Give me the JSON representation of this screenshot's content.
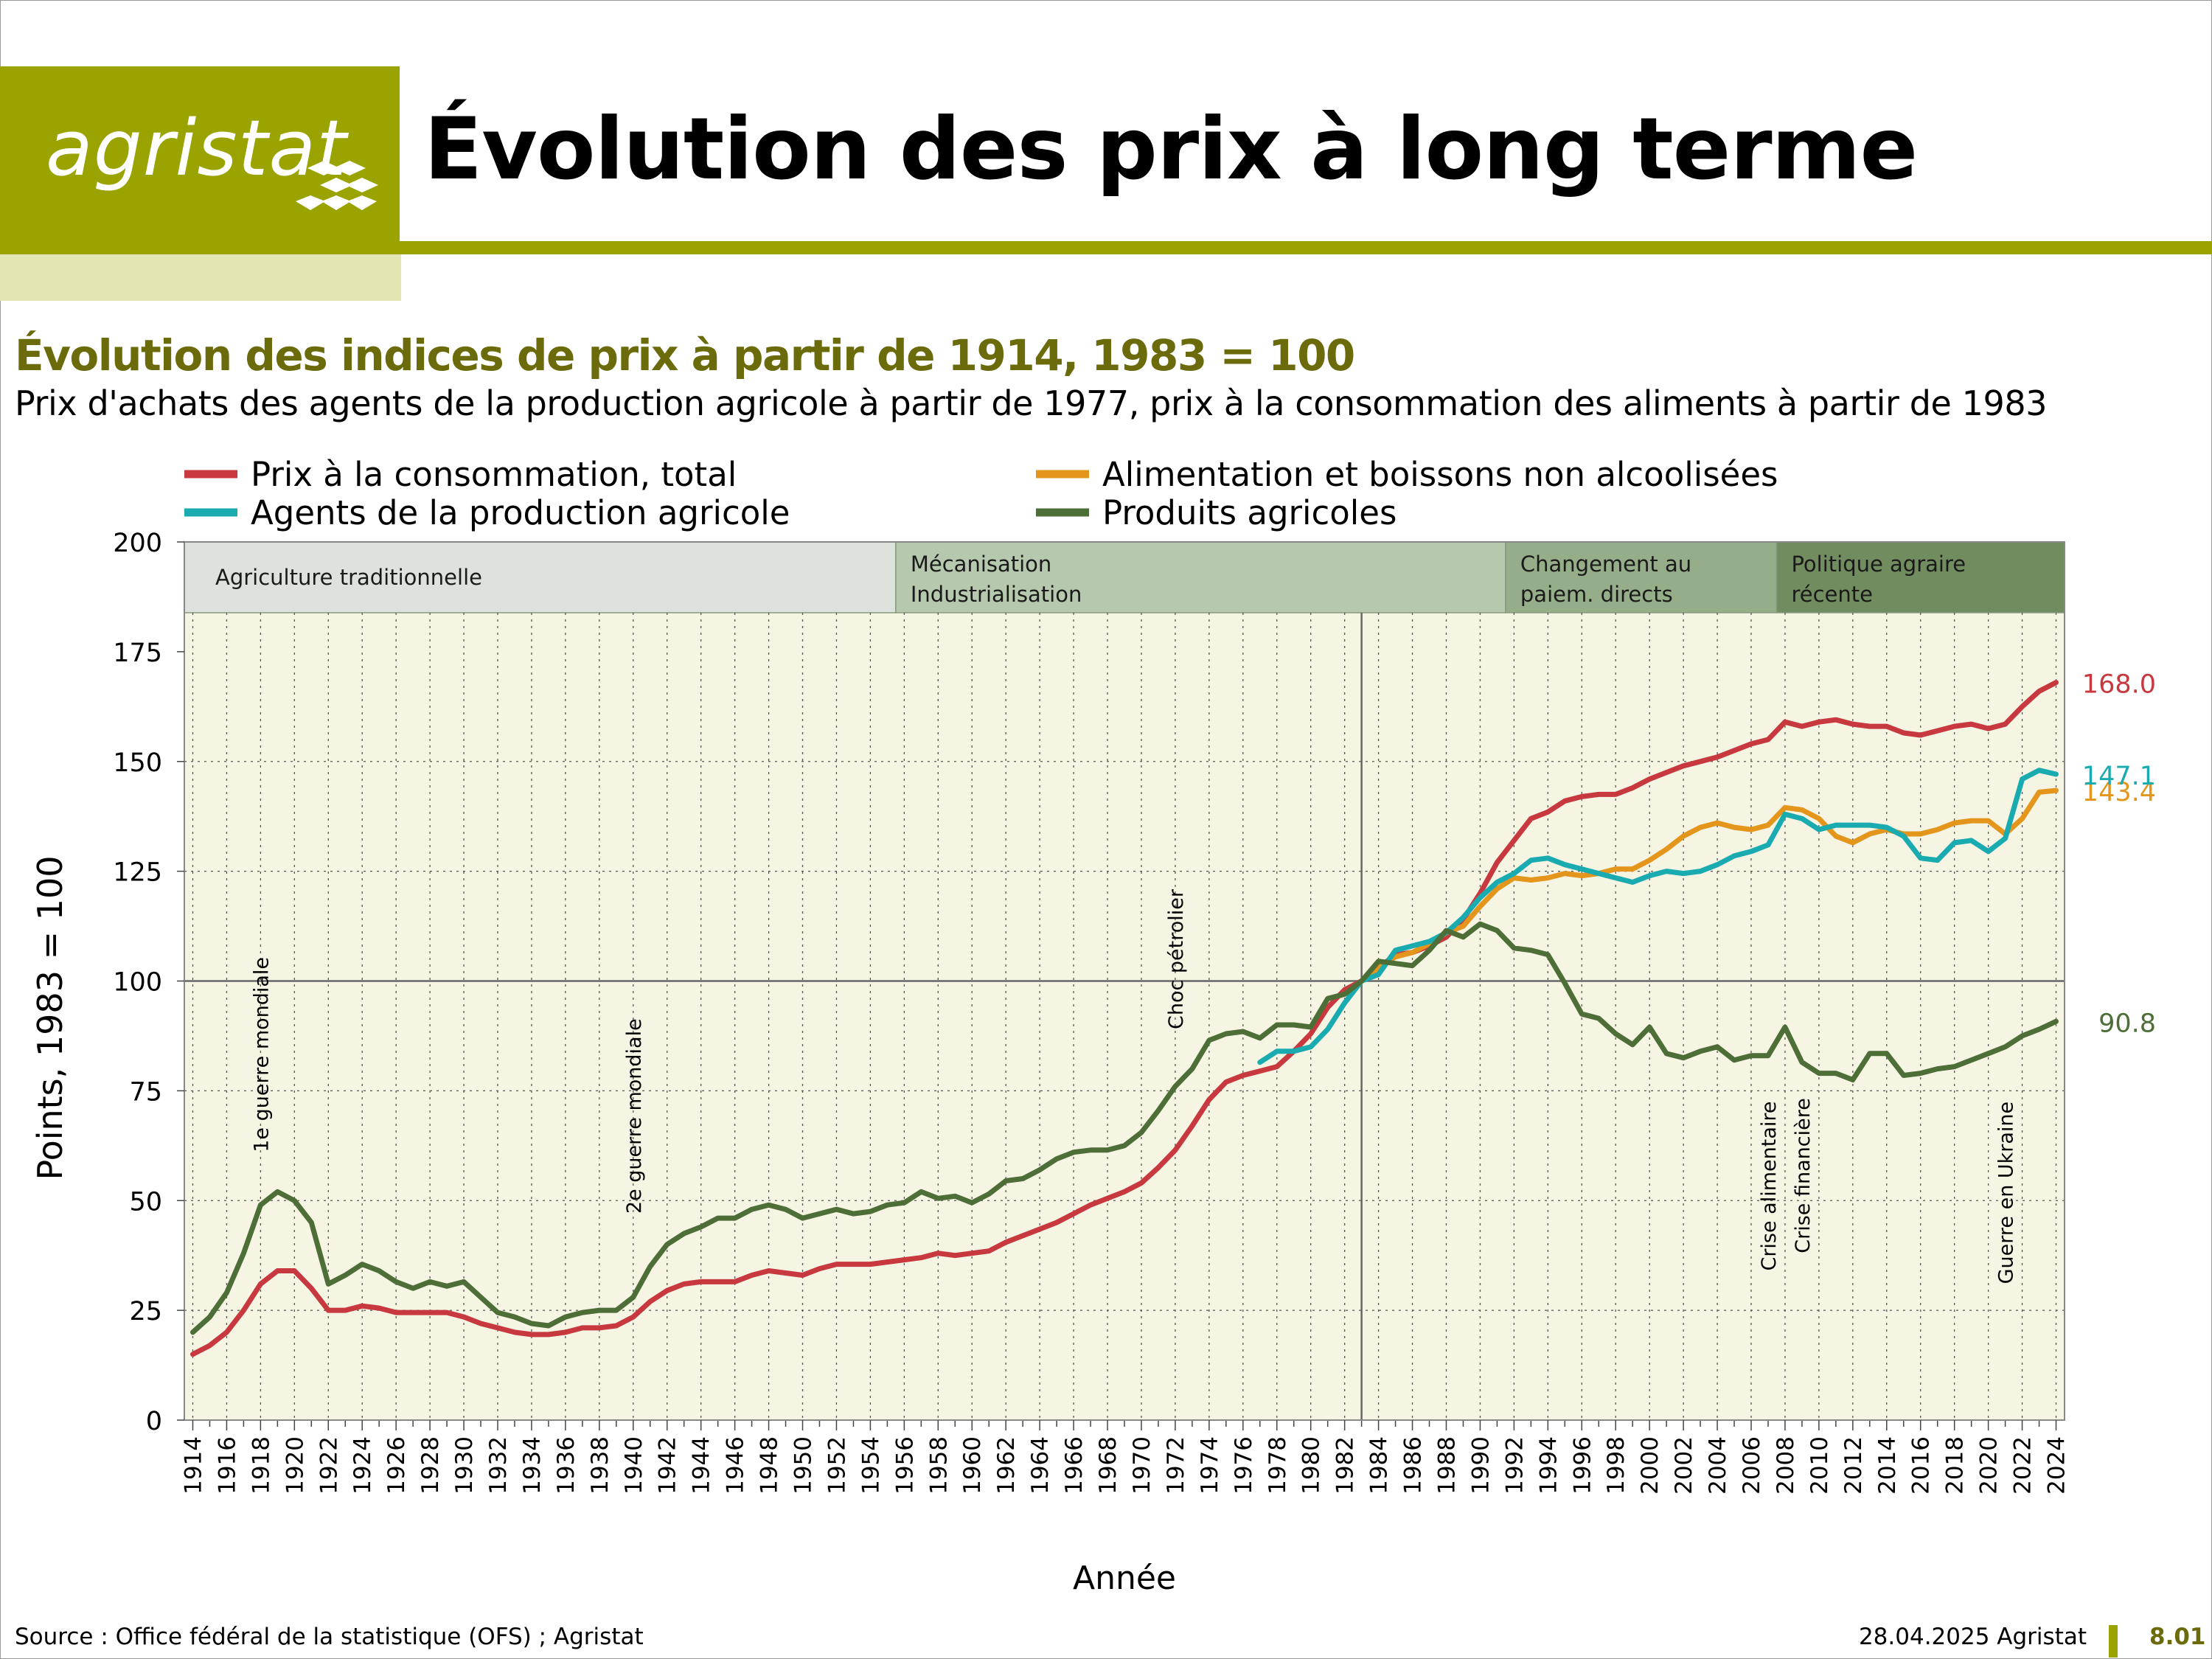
{
  "logo": {
    "text": "agristat"
  },
  "header": {
    "title": "Évolution des prix à long terme"
  },
  "colors": {
    "brand_olive": "#9aa300",
    "brand_light": "#e3e5b3",
    "title_olive": "#6b6b0c",
    "plot_bg": "#f6f5e4"
  },
  "chart_data": {
    "type": "line",
    "title": "Évolution des indices de prix à partir de 1914, 1983 = 100",
    "subtitle": "Prix d'achats des agents de la production agricole à partir de 1977, prix à la consommation des aliments à partir de 1983",
    "xlabel": "Année",
    "ylabel": "Points, 1983 = 100",
    "xlim": [
      1914,
      2024
    ],
    "ylim": [
      0,
      200
    ],
    "yticks": [
      "0",
      "25",
      "50",
      "75",
      "100",
      "125",
      "150",
      "175",
      "200"
    ],
    "xticks": [
      "1914",
      "1916",
      "1918",
      "1920",
      "1922",
      "1924",
      "1926",
      "1928",
      "1930",
      "1932",
      "1934",
      "1936",
      "1938",
      "1940",
      "1942",
      "1944",
      "1946",
      "1948",
      "1950",
      "1952",
      "1954",
      "1956",
      "1958",
      "1960",
      "1962",
      "1964",
      "1966",
      "1968",
      "1970",
      "1972",
      "1974",
      "1976",
      "1978",
      "1980",
      "1982",
      "1984",
      "1986",
      "1988",
      "1990",
      "1992",
      "1994",
      "1996",
      "1998",
      "2000",
      "2002",
      "2004",
      "2006",
      "2008",
      "2010",
      "2012",
      "2014",
      "2016",
      "2018",
      "2020",
      "2022",
      "2024"
    ],
    "grid": true,
    "legend_position": "top",
    "series": [
      {
        "name": "Prix à la consommation, total",
        "color": "#c8393f",
        "end_label": "168.0",
        "x": [
          1914,
          1915,
          1916,
          1917,
          1918,
          1919,
          1920,
          1921,
          1922,
          1923,
          1924,
          1925,
          1926,
          1927,
          1928,
          1929,
          1930,
          1931,
          1932,
          1933,
          1934,
          1935,
          1936,
          1937,
          1938,
          1939,
          1940,
          1941,
          1942,
          1943,
          1944,
          1945,
          1946,
          1947,
          1948,
          1949,
          1950,
          1951,
          1952,
          1953,
          1954,
          1955,
          1956,
          1957,
          1958,
          1959,
          1960,
          1961,
          1962,
          1963,
          1964,
          1965,
          1966,
          1967,
          1968,
          1969,
          1970,
          1971,
          1972,
          1973,
          1974,
          1975,
          1976,
          1977,
          1978,
          1979,
          1980,
          1981,
          1982,
          1983,
          1984,
          1985,
          1986,
          1987,
          1988,
          1989,
          1990,
          1991,
          1992,
          1993,
          1994,
          1995,
          1996,
          1997,
          1998,
          1999,
          2000,
          2001,
          2002,
          2003,
          2004,
          2005,
          2006,
          2007,
          2008,
          2009,
          2010,
          2011,
          2012,
          2013,
          2014,
          2015,
          2016,
          2017,
          2018,
          2019,
          2020,
          2021,
          2022,
          2023,
          2024
        ],
        "y": [
          15,
          17,
          20,
          25,
          31,
          34,
          34,
          30,
          25,
          25,
          26,
          25.5,
          24.5,
          24.5,
          24.5,
          24.5,
          23.5,
          22,
          21,
          20,
          19.5,
          19.5,
          20,
          21,
          21,
          21.5,
          23.5,
          27,
          29.5,
          31,
          31.5,
          31.5,
          31.5,
          33,
          34,
          33.5,
          33,
          34.5,
          35.5,
          35.5,
          35.5,
          36,
          36.5,
          37,
          38,
          37.5,
          38,
          38.5,
          40.5,
          42,
          43.5,
          45,
          47,
          49,
          50.5,
          52,
          54,
          57.5,
          61.5,
          67,
          73,
          77,
          78.5,
          79.5,
          80.5,
          84,
          88,
          94,
          98,
          100,
          103,
          106,
          106.5,
          108,
          110,
          114,
          120,
          127,
          132,
          137,
          138.5,
          141,
          142,
          142.5,
          142.5,
          144,
          146,
          147.5,
          149,
          150,
          151,
          152.5,
          154,
          155,
          159,
          158,
          159,
          159.5,
          158.5,
          158,
          158,
          156.5,
          156,
          157,
          158,
          158.5,
          157.5,
          158.5,
          162.5,
          166,
          168
        ]
      },
      {
        "name": "Alimentation et boissons non alcoolisées",
        "color": "#e3951c",
        "end_label": "143.4",
        "x": [
          1983,
          1984,
          1985,
          1986,
          1987,
          1988,
          1989,
          1990,
          1991,
          1992,
          1993,
          1994,
          1995,
          1996,
          1997,
          1998,
          1999,
          2000,
          2001,
          2002,
          2003,
          2004,
          2005,
          2006,
          2007,
          2008,
          2009,
          2010,
          2011,
          2012,
          2013,
          2014,
          2015,
          2016,
          2017,
          2018,
          2019,
          2020,
          2021,
          2022,
          2023,
          2024
        ],
        "y": [
          100,
          103,
          105.5,
          106.5,
          108.5,
          111,
          112.5,
          117,
          121,
          123.5,
          123,
          123.5,
          124.5,
          124,
          124.5,
          125.5,
          125.5,
          127.5,
          130,
          133,
          135,
          136,
          135,
          134.5,
          135.5,
          139.5,
          139,
          137,
          133,
          131.5,
          133.5,
          134.5,
          133.5,
          133.5,
          134.5,
          136,
          136.5,
          136.5,
          133.5,
          137,
          143,
          143.4
        ]
      },
      {
        "name": "Agents de la production agricole",
        "color": "#1aabb0",
        "end_label": "147.1",
        "x": [
          1977,
          1978,
          1979,
          1980,
          1981,
          1982,
          1983,
          1984,
          1985,
          1986,
          1987,
          1988,
          1989,
          1990,
          1991,
          1992,
          1993,
          1994,
          1995,
          1996,
          1997,
          1998,
          1999,
          2000,
          2001,
          2002,
          2003,
          2004,
          2005,
          2006,
          2007,
          2008,
          2009,
          2010,
          2011,
          2012,
          2013,
          2014,
          2015,
          2016,
          2017,
          2018,
          2019,
          2020,
          2021,
          2022,
          2023,
          2024
        ],
        "y": [
          81.5,
          84,
          84,
          85,
          89,
          95,
          100,
          101.5,
          107,
          108,
          109,
          111,
          114.5,
          119,
          122.5,
          124.5,
          127.5,
          128,
          126.5,
          125.5,
          124.5,
          123.5,
          122.5,
          124,
          125,
          124.5,
          125,
          126.5,
          128.5,
          129.5,
          131,
          138,
          137,
          134.5,
          135.5,
          135.5,
          135.5,
          135,
          133,
          128,
          127.5,
          131.5,
          132,
          129.5,
          132.5,
          146,
          148,
          147.1
        ]
      },
      {
        "name": "Produits agricoles",
        "color": "#4e6e38",
        "end_label": "90.8",
        "x": [
          1914,
          1915,
          1916,
          1917,
          1918,
          1919,
          1920,
          1921,
          1922,
          1923,
          1924,
          1925,
          1926,
          1927,
          1928,
          1929,
          1930,
          1931,
          1932,
          1933,
          1934,
          1935,
          1936,
          1937,
          1938,
          1939,
          1940,
          1941,
          1942,
          1943,
          1944,
          1945,
          1946,
          1947,
          1948,
          1949,
          1950,
          1951,
          1952,
          1953,
          1954,
          1955,
          1956,
          1957,
          1958,
          1959,
          1960,
          1961,
          1962,
          1963,
          1964,
          1965,
          1966,
          1967,
          1968,
          1969,
          1970,
          1971,
          1972,
          1973,
          1974,
          1975,
          1976,
          1977,
          1978,
          1979,
          1980,
          1981,
          1982,
          1983,
          1984,
          1985,
          1986,
          1987,
          1988,
          1989,
          1990,
          1991,
          1992,
          1993,
          1994,
          1995,
          1996,
          1997,
          1998,
          1999,
          2000,
          2001,
          2002,
          2003,
          2004,
          2005,
          2006,
          2007,
          2008,
          2009,
          2010,
          2011,
          2012,
          2013,
          2014,
          2015,
          2016,
          2017,
          2018,
          2019,
          2020,
          2021,
          2022,
          2023,
          2024
        ],
        "y": [
          20,
          23.5,
          29,
          38,
          49,
          52,
          50,
          45,
          31,
          33,
          35.5,
          34,
          31.5,
          30,
          31.5,
          30.5,
          31.5,
          28,
          24.5,
          23.5,
          22,
          21.5,
          23.5,
          24.5,
          25,
          25,
          28,
          35,
          40,
          42.5,
          44,
          46,
          46,
          48,
          49,
          48,
          46,
          47,
          48,
          47,
          47.5,
          49,
          49.5,
          52,
          50.5,
          51,
          49.5,
          51.5,
          54.5,
          55,
          57,
          59.5,
          61,
          61.5,
          61.5,
          62.5,
          65.5,
          70.5,
          76,
          80,
          86.5,
          88,
          88.5,
          87,
          90,
          90,
          89.5,
          96,
          97,
          100,
          104.5,
          104,
          103.5,
          107,
          111.5,
          110,
          113,
          111.5,
          107.5,
          107,
          106,
          99.5,
          92.5,
          91.5,
          88,
          85.5,
          89.5,
          83.5,
          82.5,
          84,
          85,
          82,
          83,
          83,
          89.5,
          81.5,
          79,
          79,
          77.5,
          83.5,
          83.5,
          78.5,
          79,
          80,
          80.5,
          82,
          83.5,
          85,
          87.5,
          89,
          90.8
        ]
      }
    ],
    "periods": [
      {
        "label": [
          "Agriculture traditionnelle"
        ],
        "start": 1913.5,
        "end": 1955.5,
        "color": "#dde3dc"
      },
      {
        "label": [
          "Mécanisation",
          "Industrialisation"
        ],
        "start": 1955.5,
        "end": 1991.5,
        "color": "#b6c8ad"
      },
      {
        "label": [
          "Changement au",
          "paiem. directs"
        ],
        "start": 1991.5,
        "end": 2007.5,
        "color": "#95ad88"
      },
      {
        "label": [
          "Politique agraire",
          "récente"
        ],
        "start": 2007.5,
        "end": 2024.5,
        "color": "#718c5f"
      }
    ],
    "annotations": [
      {
        "text": "1e guerre mondiale",
        "x": 1918,
        "y": 61
      },
      {
        "text": "2e guerre mondiale",
        "x": 1940,
        "y": 47
      },
      {
        "text": "Choc pétrolier",
        "x": 1972,
        "y": 89
      },
      {
        "text": "Crise alimentaire",
        "x": 2007,
        "y": 34
      },
      {
        "text": "Crise financière",
        "x": 2009,
        "y": 38
      },
      {
        "text": "Guerre en Ukraine",
        "x": 2021,
        "y": 31
      }
    ]
  },
  "footer": {
    "source": "Source : Office fédéral de la statistique (OFS) ; Agristat",
    "date": "28.04.2025 Agristat",
    "page": "8.01"
  }
}
